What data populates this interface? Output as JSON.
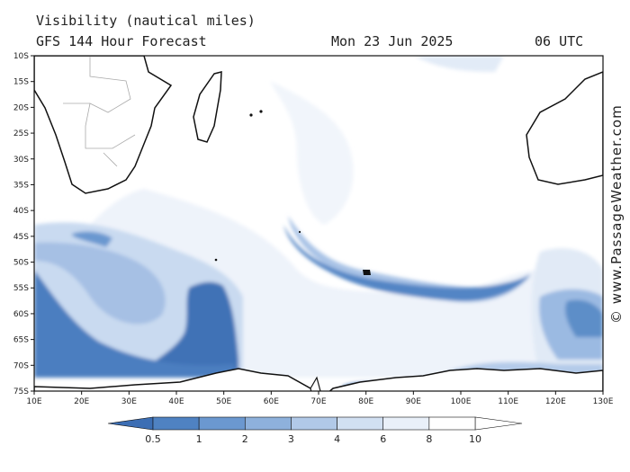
{
  "header": {
    "title": "Visibility (nautical miles)",
    "subtitle": "GFS 144 Hour Forecast",
    "date": "Mon 23 Jun 2025",
    "time": "06 UTC"
  },
  "credit": "© www.PassageWeather.com",
  "axes": {
    "lon_labels": [
      "10E",
      "20E",
      "30E",
      "40E",
      "50E",
      "60E",
      "70E",
      "80E",
      "90E",
      "100E",
      "110E",
      "120E",
      "130E"
    ],
    "lon_values": [
      10,
      20,
      30,
      40,
      50,
      60,
      70,
      80,
      90,
      100,
      110,
      120,
      130
    ],
    "lat_labels": [
      "10S",
      "15S",
      "20S",
      "25S",
      "30S",
      "35S",
      "40S",
      "45S",
      "50S",
      "55S",
      "60S",
      "65S",
      "70S",
      "75S"
    ],
    "lat_values": [
      -10,
      -15,
      -20,
      -25,
      -30,
      -35,
      -40,
      -45,
      -50,
      -55,
      -60,
      -65,
      -70,
      -75
    ],
    "lon_range": [
      10,
      130
    ],
    "lat_range": [
      -10,
      -75
    ]
  },
  "legend": {
    "labels": [
      "0.5",
      "1",
      "2",
      "3",
      "4",
      "6",
      "8",
      "10"
    ],
    "colors": [
      "#3c6eb4",
      "#4f82c2",
      "#6b98d0",
      "#8eb1dc",
      "#b1c9e8",
      "#d1e0f2",
      "#e9f0f9",
      "#ffffff"
    ]
  }
}
